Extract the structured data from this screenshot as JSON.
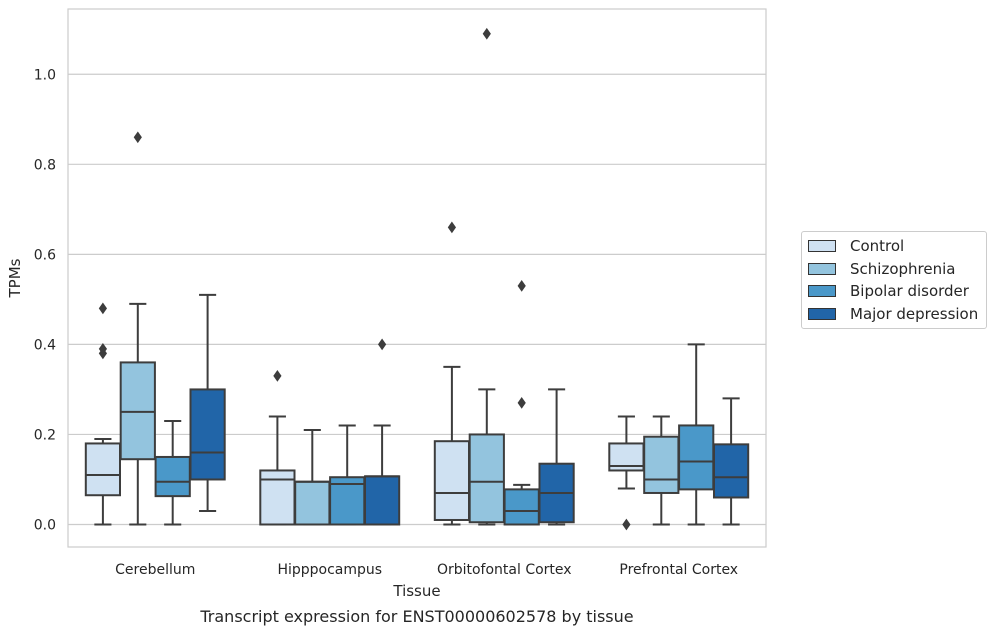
{
  "chart_data": {
    "type": "box",
    "title": "",
    "caption": "Transcript expression for ENST00000602578 by tissue",
    "xlabel": "Tissue",
    "ylabel": "TPMs",
    "ylim": [
      -0.05,
      1.145
    ],
    "yticks": [
      0.0,
      0.2,
      0.4,
      0.6,
      0.8,
      1.0
    ],
    "ytick_labels": [
      "0.0",
      "0.2",
      "0.4",
      "0.6",
      "0.8",
      "1.0"
    ],
    "grid": "horizontal",
    "legend_position": "right",
    "categories": [
      "Cerebellum",
      "Hipppocampus",
      "Orbitofontal Cortex",
      "Prefrontal Cortex"
    ],
    "series": [
      {
        "name": "Control",
        "color": "#cfe1f2",
        "boxes": [
          {
            "whislo": 0.0,
            "q1": 0.065,
            "med": 0.11,
            "q3": 0.18,
            "whishi": 0.19,
            "fliers": [
              0.38,
              0.39,
              0.48
            ]
          },
          {
            "whislo": 0.0,
            "q1": 0.0,
            "med": 0.1,
            "q3": 0.12,
            "whishi": 0.24,
            "fliers": [
              0.33
            ]
          },
          {
            "whislo": 0.0,
            "q1": 0.01,
            "med": 0.07,
            "q3": 0.185,
            "whishi": 0.35,
            "fliers": [
              0.66
            ]
          },
          {
            "whislo": 0.08,
            "q1": 0.12,
            "med": 0.13,
            "q3": 0.18,
            "whishi": 0.24,
            "fliers": [
              0.0
            ]
          }
        ]
      },
      {
        "name": "Schizophrenia",
        "color": "#93c4de",
        "boxes": [
          {
            "whislo": 0.0,
            "q1": 0.145,
            "med": 0.25,
            "q3": 0.36,
            "whishi": 0.49,
            "fliers": [
              0.86
            ]
          },
          {
            "whislo": 0.0,
            "q1": 0.0,
            "med": 0.095,
            "q3": 0.095,
            "whishi": 0.21,
            "fliers": []
          },
          {
            "whislo": 0.0,
            "q1": 0.005,
            "med": 0.095,
            "q3": 0.2,
            "whishi": 0.3,
            "fliers": [
              1.09
            ]
          },
          {
            "whislo": 0.0,
            "q1": 0.07,
            "med": 0.1,
            "q3": 0.195,
            "whishi": 0.24,
            "fliers": []
          }
        ]
      },
      {
        "name": "Bipolar disorder",
        "color": "#4a98c9",
        "boxes": [
          {
            "whislo": 0.0,
            "q1": 0.063,
            "med": 0.095,
            "q3": 0.15,
            "whishi": 0.23,
            "fliers": []
          },
          {
            "whislo": 0.0,
            "q1": 0.0,
            "med": 0.09,
            "q3": 0.105,
            "whishi": 0.22,
            "fliers": []
          },
          {
            "whislo": 0.0,
            "q1": 0.0,
            "med": 0.03,
            "q3": 0.078,
            "whishi": 0.088,
            "fliers": [
              0.27,
              0.53
            ]
          },
          {
            "whislo": 0.0,
            "q1": 0.078,
            "med": 0.14,
            "q3": 0.22,
            "whishi": 0.4,
            "fliers": []
          }
        ]
      },
      {
        "name": "Major depression",
        "color": "#2165a8",
        "boxes": [
          {
            "whislo": 0.03,
            "q1": 0.1,
            "med": 0.16,
            "q3": 0.3,
            "whishi": 0.51,
            "fliers": []
          },
          {
            "whislo": 0.0,
            "q1": 0.0,
            "med": 0.107,
            "q3": 0.107,
            "whishi": 0.22,
            "fliers": [
              0.4
            ]
          },
          {
            "whislo": 0.0,
            "q1": 0.005,
            "med": 0.07,
            "q3": 0.135,
            "whishi": 0.3,
            "fliers": []
          },
          {
            "whislo": 0.0,
            "q1": 0.06,
            "med": 0.105,
            "q3": 0.178,
            "whishi": 0.28,
            "fliers": []
          }
        ]
      }
    ]
  }
}
